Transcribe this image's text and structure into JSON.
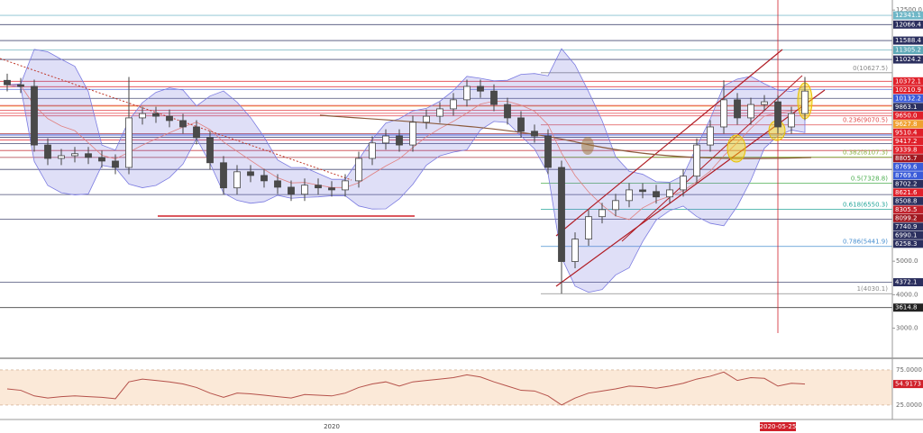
{
  "chart_data": {
    "type": "candlestick",
    "categories": [
      null,
      null,
      null,
      null,
      null,
      null,
      null,
      null,
      null,
      null,
      null,
      null,
      null,
      null,
      null,
      null,
      null,
      null,
      null,
      null,
      null,
      null,
      null,
      null,
      "2020",
      null,
      null,
      null,
      null,
      null,
      null,
      null,
      null,
      null,
      null,
      null,
      null,
      null,
      null,
      null,
      null,
      null,
      null,
      null,
      null,
      null,
      null,
      null,
      null,
      null,
      null,
      null,
      null,
      null,
      null,
      null,
      null,
      "2020-05-25",
      null,
      null
    ],
    "open": [
      10400,
      10270,
      10220,
      8470,
      8070,
      8150,
      8210,
      8100,
      7990,
      7800,
      9280,
      9410,
      9330,
      9200,
      9010,
      8690,
      7940,
      7190,
      7670,
      7560,
      7400,
      7210,
      7000,
      7270,
      7190,
      7130,
      7400,
      8070,
      8530,
      8740,
      8470,
      9150,
      9330,
      9550,
      9820,
      10220,
      10080,
      9680,
      9280,
      8880,
      8740,
      7800,
      4990,
      5660,
      6330,
      6540,
      6810,
      7130,
      7080,
      6920,
      7130,
      7540,
      8470,
      9010,
      9820,
      9280,
      9680,
      9760,
      9010,
      9410
    ],
    "high": [
      10600,
      10470,
      10420,
      8670,
      8350,
      8410,
      8410,
      8300,
      8190,
      10500,
      9610,
      9610,
      9530,
      9400,
      9210,
      8890,
      8140,
      7870,
      7870,
      7760,
      7600,
      7410,
      7470,
      7470,
      7390,
      7600,
      8270,
      8730,
      8940,
      8940,
      9350,
      9530,
      9750,
      10020,
      10420,
      10420,
      10280,
      9880,
      9480,
      9080,
      8940,
      8000,
      5860,
      6530,
      6740,
      7010,
      7330,
      7330,
      7280,
      7330,
      7740,
      8670,
      9210,
      10400,
      10020,
      9880,
      9960,
      9960,
      9610,
      10500
    ],
    "low": [
      10070,
      10020,
      8270,
      7870,
      7870,
      7950,
      7900,
      7790,
      7600,
      7600,
      9080,
      9130,
      9000,
      8810,
      8490,
      7740,
      6990,
      6990,
      7360,
      7200,
      7010,
      6800,
      6800,
      6990,
      6930,
      6930,
      7200,
      7870,
      8330,
      8270,
      8270,
      8950,
      9130,
      9350,
      9620,
      9880,
      9480,
      9080,
      8680,
      8540,
      7600,
      4030,
      4790,
      5460,
      6130,
      6340,
      6610,
      6880,
      6720,
      6720,
      6930,
      7340,
      8270,
      8810,
      9080,
      9080,
      9480,
      8810,
      8810,
      9210
    ],
    "close": [
      10270,
      10220,
      8470,
      8070,
      8150,
      8210,
      8100,
      7990,
      7800,
      9280,
      9410,
      9330,
      9200,
      9010,
      8690,
      7940,
      7190,
      7670,
      7560,
      7400,
      7210,
      7000,
      7270,
      7190,
      7130,
      7400,
      8070,
      8530,
      8740,
      8470,
      9150,
      9330,
      9550,
      9820,
      10220,
      10080,
      9680,
      9280,
      8880,
      8740,
      7800,
      4990,
      5660,
      6330,
      6540,
      6810,
      7130,
      7080,
      6920,
      7130,
      7540,
      8470,
      9010,
      9820,
      9280,
      9680,
      9760,
      9010,
      9410,
      10080
    ],
    "up_color": "#ffffff",
    "down_color": "#4a4a4a",
    "ylim": [
      2800,
      12800
    ],
    "yticks": [
      {
        "value": 12500,
        "label": "12500.0"
      },
      {
        "value": 5000,
        "label": "5000.0"
      },
      {
        "value": 4000,
        "label": "4000.0"
      },
      {
        "value": 3000,
        "label": "3000.0"
      }
    ],
    "grid": false,
    "price_lines": [
      {
        "value": 12341.1,
        "color": "#6fb7c7"
      },
      {
        "value": 12066.4,
        "color": "#2b2f5e"
      },
      {
        "value": 11588.4,
        "color": "#2b2f5e"
      },
      {
        "value": 11305.2,
        "color": "#5fa9b8"
      },
      {
        "value": 11024.2,
        "color": "#2b2f5e"
      },
      {
        "value": 10372.1,
        "color": "#e0202a"
      },
      {
        "value": 10210.9,
        "color": "#e0202a"
      },
      {
        "value": 10132.2,
        "color": "#3a5bd9"
      },
      {
        "value": 9863.1,
        "color": "#2b2f5e"
      },
      {
        "value": 9650.0,
        "label": "9650.0",
        "color": "#e0202a"
      },
      {
        "value": 9627.8,
        "color": "#f0a030"
      },
      {
        "value": 9510.4,
        "color": "#e0202a"
      },
      {
        "value": 9417.2,
        "color": "#e0202a"
      },
      {
        "value": 9339.8,
        "color": "#e0202a"
      },
      {
        "value": 8805.7,
        "color": "#a01820"
      },
      {
        "value": 8769.6,
        "color": "#3a5bd9"
      },
      {
        "value": 8769.6,
        "color": "#3a5bd9"
      },
      {
        "value": 8702.2,
        "color": "#2b2f5e"
      },
      {
        "value": 8621.6,
        "color": "#e0202a"
      },
      {
        "value": 8508.8,
        "color": "#2b2f5e"
      },
      {
        "value": 8305.5,
        "color": "#c0202a"
      },
      {
        "value": 8099.2,
        "color": "#a01820"
      },
      {
        "value": 7740.9,
        "color": "#2b2f5e"
      },
      {
        "value": 6990.1,
        "color": "#2b2f5e"
      },
      {
        "value": 6258.3,
        "color": "#2b2f5e"
      },
      {
        "value": 4372.1,
        "color": "#2b2f5e"
      },
      {
        "value": 3614.8,
        "color": "#222222"
      }
    ],
    "fib_levels": [
      {
        "value": 10627.5,
        "label": "0(10627.5)",
        "color": "#8a8a8a"
      },
      {
        "value": 9070.5,
        "label": "0.236(9070.5)",
        "color": "#e05050"
      },
      {
        "value": 8107.3,
        "label": "0.382(8107.3)",
        "color": "#8ab040"
      },
      {
        "value": 7328.8,
        "label": "0.5(7328.8)",
        "color": "#4caf50"
      },
      {
        "value": 6550.3,
        "label": "0.618(6550.3)",
        "color": "#26a69a"
      },
      {
        "value": 5441.9,
        "label": "0.786(5441.9)",
        "color": "#4a90d0"
      },
      {
        "value": 4030.1,
        "label": "1(4030.1)",
        "color": "#8a8a8a"
      }
    ],
    "rsi": {
      "values": [
        48,
        46,
        38,
        35,
        37,
        38,
        37,
        36,
        34,
        58,
        62,
        60,
        58,
        55,
        50,
        42,
        36,
        42,
        41,
        39,
        37,
        35,
        40,
        39,
        38,
        42,
        50,
        55,
        58,
        52,
        58,
        60,
        62,
        64,
        68,
        65,
        58,
        52,
        46,
        45,
        38,
        25,
        35,
        42,
        45,
        48,
        52,
        51,
        49,
        52,
        56,
        62,
        66,
        72,
        60,
        64,
        63,
        52,
        56,
        54.9173
      ],
      "color": "#b5514a",
      "ylim": [
        7,
        89
      ],
      "yticks": [
        {
          "value": 75,
          "label": "75.0000"
        },
        {
          "value": 25,
          "label": "25.0000"
        }
      ]
    }
  }
}
